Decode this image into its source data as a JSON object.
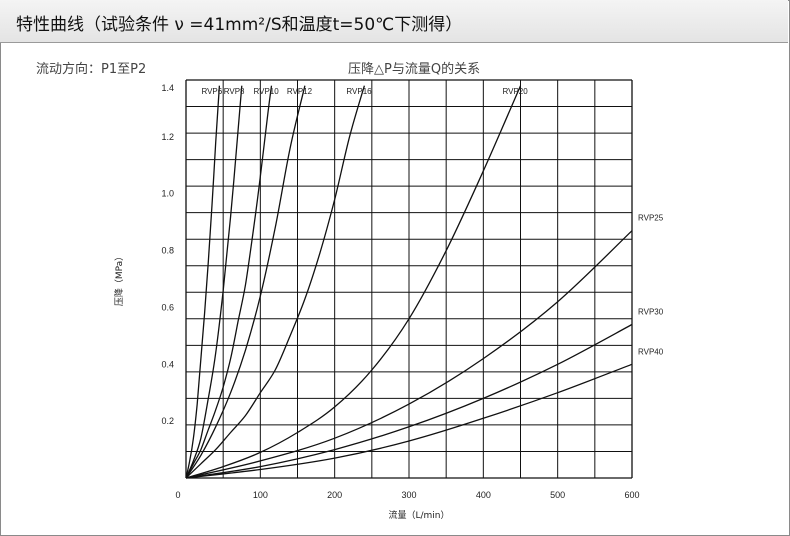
{
  "header": {
    "title": "特性曲线（试验条件 ν =41mm²/S和温度t=50℃下测得）"
  },
  "flow_direction": "流动方向：P1至P2",
  "chart_data": {
    "type": "line",
    "title": "压降△P与流量Q的关系",
    "xlabel": "流量（L/min）",
    "ylabel": "压降（MPa）",
    "xlim": [
      0,
      600
    ],
    "ylim": [
      0,
      1.4
    ],
    "x_ticks": [
      "0",
      "100",
      "200",
      "300",
      "400",
      "500",
      "600"
    ],
    "y_ticks": [
      "0.2",
      "0.4",
      "0.6",
      "0.8",
      "1.0",
      "1.2",
      "1.4"
    ],
    "grid": true,
    "series": [
      {
        "name": "RVP6",
        "x": [
          0,
          5,
          10,
          15,
          20,
          25,
          30,
          35,
          40,
          45
        ],
        "y": [
          0,
          0.06,
          0.14,
          0.26,
          0.42,
          0.58,
          0.76,
          0.96,
          1.18,
          1.38
        ]
      },
      {
        "name": "RVP8",
        "x": [
          0,
          10,
          20,
          30,
          40,
          50,
          60,
          70,
          75
        ],
        "y": [
          0,
          0.06,
          0.14,
          0.28,
          0.44,
          0.66,
          0.92,
          1.22,
          1.38
        ]
      },
      {
        "name": "RVP10",
        "x": [
          0,
          10,
          20,
          30,
          40,
          50,
          60,
          70,
          80,
          90,
          100,
          110,
          115
        ],
        "y": [
          0,
          0.05,
          0.1,
          0.17,
          0.24,
          0.32,
          0.42,
          0.55,
          0.68,
          0.86,
          1.06,
          1.28,
          1.38
        ]
      },
      {
        "name": "RVP12",
        "x": [
          0,
          20,
          40,
          60,
          80,
          100,
          120,
          140,
          160
        ],
        "y": [
          0,
          0.08,
          0.18,
          0.3,
          0.45,
          0.64,
          0.88,
          1.16,
          1.38
        ]
      },
      {
        "name": "RVP16",
        "x": [
          0,
          20,
          40,
          60,
          80,
          100,
          120,
          140,
          160,
          180,
          200,
          220,
          240
        ],
        "y": [
          0,
          0.05,
          0.1,
          0.16,
          0.22,
          0.3,
          0.38,
          0.5,
          0.63,
          0.79,
          0.98,
          1.2,
          1.38
        ]
      },
      {
        "name": "RVP20",
        "x": [
          0,
          50,
          100,
          150,
          200,
          250,
          300,
          350,
          400,
          450
        ],
        "y": [
          0,
          0.04,
          0.09,
          0.16,
          0.25,
          0.38,
          0.56,
          0.8,
          1.08,
          1.38
        ]
      },
      {
        "name": "RVP25",
        "x": [
          0,
          100,
          200,
          300,
          400,
          500,
          600
        ],
        "y": [
          0,
          0.06,
          0.14,
          0.26,
          0.42,
          0.62,
          0.87
        ]
      },
      {
        "name": "RVP30",
        "x": [
          0,
          100,
          200,
          300,
          400,
          500,
          600
        ],
        "y": [
          0,
          0.04,
          0.1,
          0.18,
          0.28,
          0.4,
          0.54
        ]
      },
      {
        "name": "RVP40",
        "x": [
          0,
          100,
          200,
          300,
          400,
          500,
          600
        ],
        "y": [
          0,
          0.03,
          0.07,
          0.13,
          0.21,
          0.3,
          0.4
        ]
      }
    ]
  }
}
